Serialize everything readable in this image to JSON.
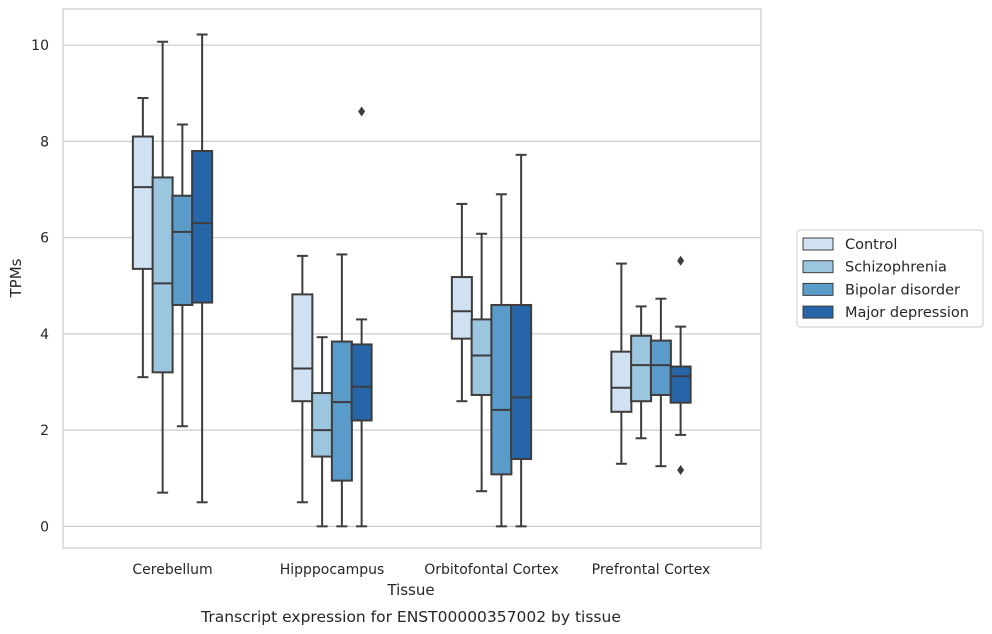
{
  "chart_data": {
    "type": "boxplot",
    "caption": "Transcript expression for ENST00000357002 by tissue",
    "xlabel": "Tissue",
    "ylabel": "TPMs",
    "ylim": [
      -0.45,
      10.75
    ],
    "yticks": [
      0,
      2,
      4,
      6,
      8,
      10
    ],
    "grid": "horizontal",
    "legend_position": "right",
    "categories": [
      "Cerebellum",
      "Hipppocampus",
      "Orbitofontal Cortex",
      "Prefrontal Cortex"
    ],
    "series": [
      {
        "name": "Control",
        "color": "#d0e1f2",
        "boxes": [
          {
            "whislo": 3.1,
            "q1": 5.35,
            "med": 7.05,
            "q3": 8.1,
            "whishi": 8.9,
            "fliers": []
          },
          {
            "whislo": 0.5,
            "q1": 2.6,
            "med": 3.28,
            "q3": 4.82,
            "whishi": 5.62,
            "fliers": []
          },
          {
            "whislo": 2.6,
            "q1": 3.9,
            "med": 4.47,
            "q3": 5.18,
            "whishi": 6.7,
            "fliers": []
          },
          {
            "whislo": 1.3,
            "q1": 2.38,
            "med": 2.88,
            "q3": 3.63,
            "whishi": 5.46,
            "fliers": []
          }
        ]
      },
      {
        "name": "Schizophrenia",
        "color": "#9cc5df",
        "boxes": [
          {
            "whislo": 0.7,
            "q1": 3.2,
            "med": 5.05,
            "q3": 7.25,
            "whishi": 10.07,
            "fliers": []
          },
          {
            "whislo": 0.0,
            "q1": 1.45,
            "med": 2.0,
            "q3": 2.77,
            "whishi": 3.93,
            "fliers": []
          },
          {
            "whislo": 0.73,
            "q1": 2.73,
            "med": 3.55,
            "q3": 4.3,
            "whishi": 6.08,
            "fliers": []
          },
          {
            "whislo": 1.83,
            "q1": 2.6,
            "med": 3.35,
            "q3": 3.96,
            "whishi": 4.57,
            "fliers": []
          }
        ]
      },
      {
        "name": "Bipolar disorder",
        "color": "#5a9bc9",
        "boxes": [
          {
            "whislo": 2.08,
            "q1": 4.6,
            "med": 6.12,
            "q3": 6.87,
            "whishi": 8.35,
            "fliers": []
          },
          {
            "whislo": 0.0,
            "q1": 0.95,
            "med": 2.58,
            "q3": 3.84,
            "whishi": 5.65,
            "fliers": []
          },
          {
            "whislo": 0.0,
            "q1": 1.08,
            "med": 2.42,
            "q3": 4.6,
            "whishi": 6.9,
            "fliers": []
          },
          {
            "whislo": 1.25,
            "q1": 2.73,
            "med": 3.35,
            "q3": 3.86,
            "whishi": 4.73,
            "fliers": []
          }
        ]
      },
      {
        "name": "Major depression",
        "color": "#2666a8",
        "boxes": [
          {
            "whislo": 0.5,
            "q1": 4.65,
            "med": 6.3,
            "q3": 7.8,
            "whishi": 10.22,
            "fliers": []
          },
          {
            "whislo": 0.0,
            "q1": 2.2,
            "med": 2.9,
            "q3": 3.78,
            "whishi": 4.3,
            "fliers": [
              8.62
            ]
          },
          {
            "whislo": 0.0,
            "q1": 1.4,
            "med": 2.68,
            "q3": 4.6,
            "whishi": 7.72,
            "fliers": []
          },
          {
            "whislo": 1.9,
            "q1": 2.57,
            "med": 3.12,
            "q3": 3.32,
            "whishi": 4.15,
            "fliers": [
              5.52,
              1.17
            ]
          }
        ]
      }
    ]
  }
}
